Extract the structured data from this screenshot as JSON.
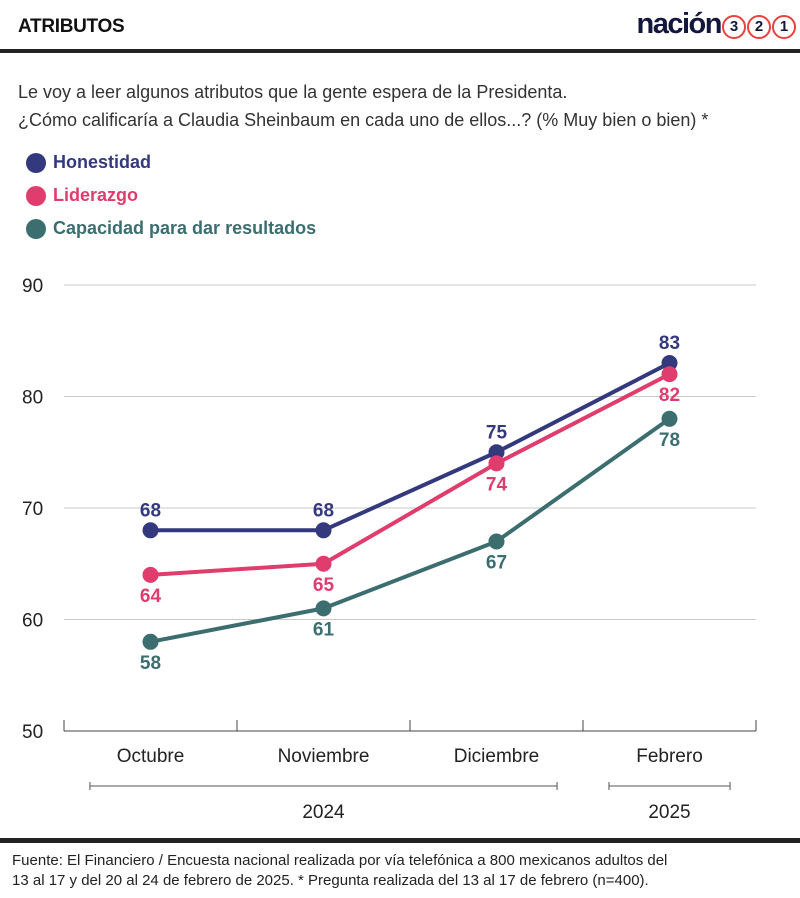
{
  "header": {
    "section_label": "ATRIBUTOS",
    "logo_word": "nación",
    "logo_digits": [
      "3",
      "2",
      "1"
    ]
  },
  "question": {
    "line1": "Le voy a leer algunos atributos que la gente espera de la Presidenta.",
    "line2": "¿Cómo calificaría a Claudia Sheinbaum en cada uno de ellos...?  (% Muy bien o bien) *"
  },
  "colors": {
    "honestidad": "#34397e",
    "liderazgo": "#e03c6d",
    "capacidad": "#3c6e70",
    "logo_accent": "#e8413e"
  },
  "chart_data": {
    "type": "line",
    "categories": [
      "Octubre",
      "Noviembre",
      "Diciembre",
      "Febrero"
    ],
    "year_groups": [
      {
        "label": "2024",
        "categories": [
          "Octubre",
          "Noviembre",
          "Diciembre"
        ]
      },
      {
        "label": "2025",
        "categories": [
          "Febrero"
        ]
      }
    ],
    "ylim": [
      50,
      90
    ],
    "yticks": [
      50,
      60,
      70,
      80,
      90
    ],
    "grid": true,
    "legend_position": "top-left",
    "series": [
      {
        "name": "Honestidad",
        "key": "honestidad",
        "values": [
          68,
          68,
          75,
          83
        ],
        "label_pos": [
          "above",
          "above",
          "above",
          "above"
        ]
      },
      {
        "name": "Liderazgo",
        "key": "liderazgo",
        "values": [
          64,
          65,
          74,
          82
        ],
        "label_pos": [
          "below",
          "below",
          "below",
          "below"
        ]
      },
      {
        "name": "Capacidad para dar resultados",
        "key": "capacidad",
        "values": [
          58,
          61,
          67,
          78
        ],
        "label_pos": [
          "below",
          "below",
          "below",
          "below"
        ]
      }
    ]
  },
  "footer": {
    "line1": "Fuente: El Financiero / Encuesta nacional realizada por vía telefónica a 800 mexicanos adultos del",
    "line2": "13 al 17 y del 20 al 24 de febrero de 2025. * Pregunta realizada del 13 al 17 de febrero (n=400)."
  }
}
